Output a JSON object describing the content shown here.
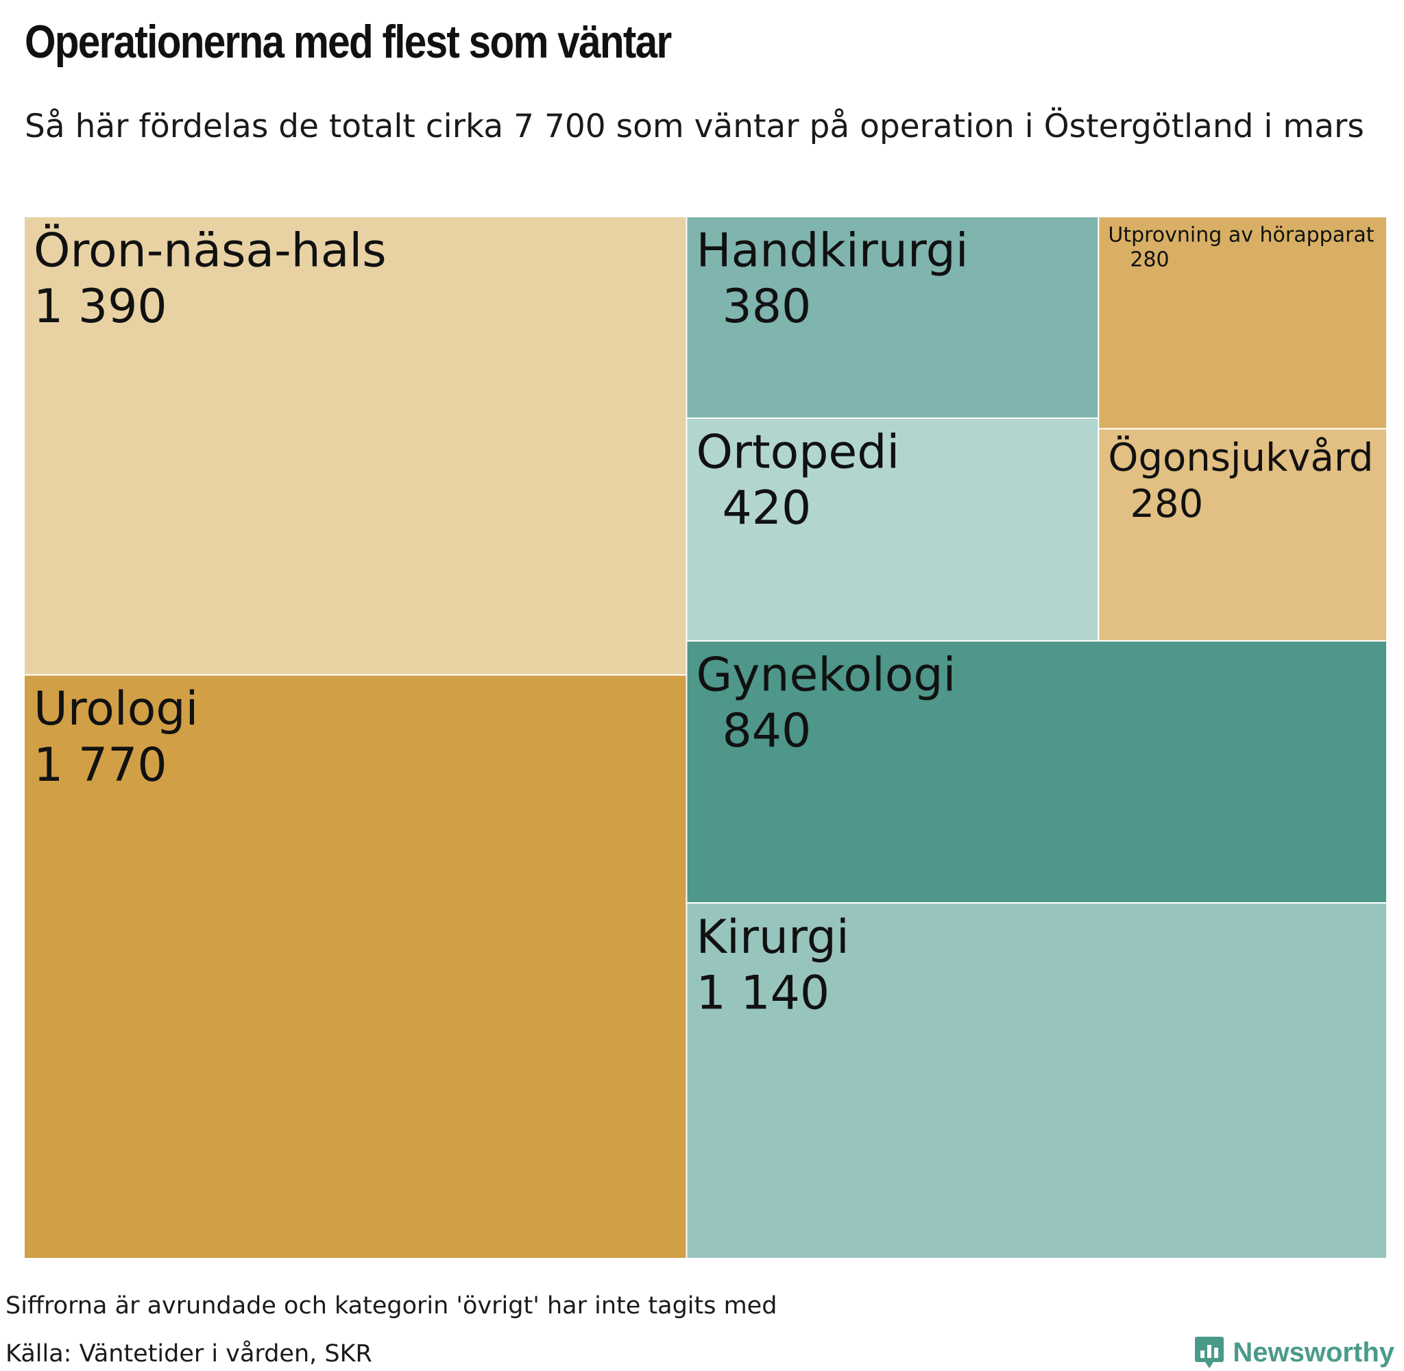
{
  "header": {
    "title": "Operationerna med flest som väntar",
    "subtitle": "Så här fördelas de totalt cirka 7 700 som väntar på operation i Östergötland i mars"
  },
  "chart_data": {
    "type": "treemap",
    "unit": "personer",
    "items": [
      {
        "label": "Öron-näsa-hals",
        "value": 1390,
        "value_text": "1 390",
        "color": "#e8d2a4"
      },
      {
        "label": "Urologi",
        "value": 1770,
        "value_text": "1 770",
        "color": "#d19f46"
      },
      {
        "label": "Handkirurgi",
        "value": 380,
        "value_text": "380",
        "color": "#7fb5ae"
      },
      {
        "label": "Ortopedi",
        "value": 420,
        "value_text": "420",
        "color": "#b2d6cf"
      },
      {
        "label": "Utprovning av hörapparat",
        "value": 280,
        "value_text": "280",
        "color": "#d8af64"
      },
      {
        "label": "Ögonsjukvård",
        "value": 280,
        "value_text": "280",
        "color": "#e2bf82"
      },
      {
        "label": "Gynekologi",
        "value": 840,
        "value_text": "840",
        "color": "#4e978a"
      },
      {
        "label": "Kirurgi",
        "value": 1140,
        "value_text": "1 140",
        "color": "#98c4be"
      }
    ]
  },
  "footer": {
    "note": "Siffrorna är avrundade och kategorin 'övrigt' har inte tagits med",
    "source": "Källa: Väntetider i vården, SKR",
    "brand": "Newsworthy",
    "brand_color": "#4a9a8a"
  }
}
